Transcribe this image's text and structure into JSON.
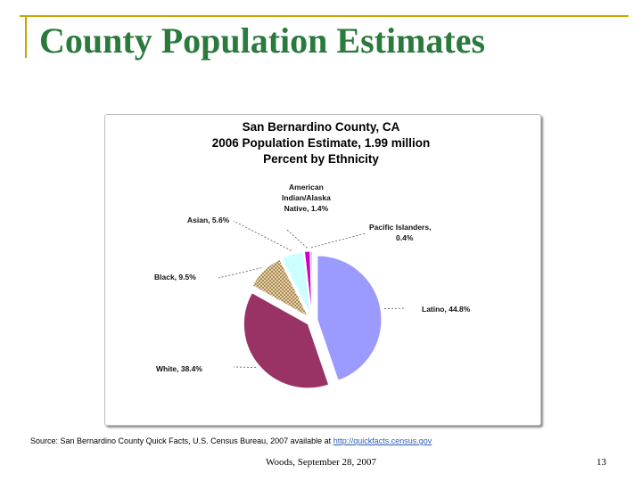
{
  "slide": {
    "title": "County Population Estimates",
    "source_text": "Source: San Bernardino County Quick Facts, U.S. Census Bureau, 2007 available at",
    "source_link": "http://quickfacts.census.gov",
    "footer": "Woods, September 28, 2007",
    "page_number": "13"
  },
  "chart_data": {
    "type": "pie",
    "title_lines": [
      "San Bernardino County, CA",
      "2006 Population Estimate, 1.99 million",
      "Percent by Ethnicity"
    ],
    "slices": [
      {
        "label": "Latino, 44.8%",
        "value": 44.8,
        "color": "#9a9aff",
        "pattern": "solid"
      },
      {
        "label": "White, 38.4%",
        "value": 38.4,
        "color": "#993366",
        "pattern": "solid"
      },
      {
        "label": "Black, 9.5%",
        "value": 9.5,
        "color": "#e0c8a0",
        "pattern": "checker"
      },
      {
        "label": "Asian, 5.6%",
        "value": 5.6,
        "color": "#ccffff",
        "pattern": "solid"
      },
      {
        "label": "American Indian/Alaska Native, 1.4%",
        "value": 1.4,
        "color": "#cc00cc",
        "pattern": "solid"
      },
      {
        "label": "Pacific Islanders, 0.4%",
        "value": 0.4,
        "color": "#9999cc",
        "pattern": "solid"
      }
    ],
    "label_lines": {
      "latino": [
        "Latino, 44.8%"
      ],
      "white": [
        "White, 38.4%"
      ],
      "black": [
        "Black, 9.5%"
      ],
      "asian": [
        "Asian, 5.6%"
      ],
      "american_indian": [
        "American",
        "Indian/Alaska",
        "Native, 1.4%"
      ],
      "pacific": [
        "Pacific Islanders,",
        "0.4%"
      ]
    },
    "start_angle_deg": 0,
    "direction": "clockwise"
  }
}
